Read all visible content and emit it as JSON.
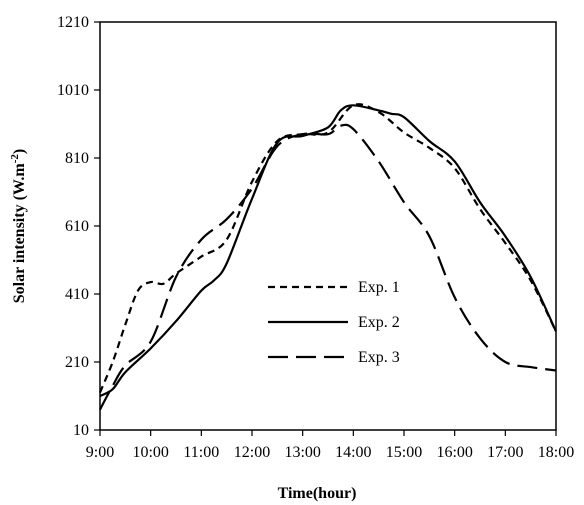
{
  "chart_data": {
    "type": "line",
    "title": "",
    "xlabel": "Time(hour)",
    "ylabel": "Solar intensity (W.m-2)",
    "ylabel_parts": {
      "main": "Solar intensity (W.m",
      "sup": "-2",
      "close": ")"
    },
    "xlim": [
      9,
      18
    ],
    "ylim": [
      10,
      1210
    ],
    "x_ticks": [
      {
        "value": 9,
        "label": "9:00"
      },
      {
        "value": 10,
        "label": "10:00"
      },
      {
        "value": 11,
        "label": "11:00"
      },
      {
        "value": 12,
        "label": "12:00"
      },
      {
        "value": 13,
        "label": "13:00"
      },
      {
        "value": 14,
        "label": "14:00"
      },
      {
        "value": 15,
        "label": "15:00"
      },
      {
        "value": 16,
        "label": "16:00"
      },
      {
        "value": 17,
        "label": "17:00"
      },
      {
        "value": 18,
        "label": "18:00"
      }
    ],
    "y_ticks": [
      {
        "value": 10,
        "label": "10"
      },
      {
        "value": 210,
        "label": "210"
      },
      {
        "value": 410,
        "label": "410"
      },
      {
        "value": 610,
        "label": "610"
      },
      {
        "value": 810,
        "label": "810"
      },
      {
        "value": 1010,
        "label": "1010"
      },
      {
        "value": 1210,
        "label": "1210"
      }
    ],
    "grid": false,
    "legend_position": "center",
    "series": [
      {
        "name": "Exp. 1",
        "dash": "short",
        "points": [
          [
            9.0,
            120
          ],
          [
            9.25,
            210
          ],
          [
            9.5,
            320
          ],
          [
            9.75,
            420
          ],
          [
            10.0,
            445
          ],
          [
            10.25,
            440
          ],
          [
            10.5,
            470
          ],
          [
            11.0,
            520
          ],
          [
            11.5,
            570
          ],
          [
            12.0,
            740
          ],
          [
            12.5,
            860
          ],
          [
            13.0,
            880
          ],
          [
            13.5,
            885
          ],
          [
            14.0,
            965
          ],
          [
            14.5,
            945
          ],
          [
            15.0,
            885
          ],
          [
            15.5,
            840
          ],
          [
            16.0,
            780
          ],
          [
            16.5,
            660
          ],
          [
            17.0,
            560
          ],
          [
            17.5,
            450
          ],
          [
            18.0,
            300
          ]
        ]
      },
      {
        "name": "Exp. 2",
        "dash": "solid",
        "points": [
          [
            9.0,
            110
          ],
          [
            9.25,
            130
          ],
          [
            9.5,
            180
          ],
          [
            10.0,
            250
          ],
          [
            10.5,
            330
          ],
          [
            11.0,
            420
          ],
          [
            11.25,
            450
          ],
          [
            11.5,
            500
          ],
          [
            12.0,
            690
          ],
          [
            12.5,
            855
          ],
          [
            13.0,
            875
          ],
          [
            13.5,
            900
          ],
          [
            13.75,
            950
          ],
          [
            14.0,
            965
          ],
          [
            14.5,
            950
          ],
          [
            14.75,
            940
          ],
          [
            15.0,
            930
          ],
          [
            15.5,
            860
          ],
          [
            16.0,
            800
          ],
          [
            16.5,
            680
          ],
          [
            17.0,
            580
          ],
          [
            17.5,
            460
          ],
          [
            18.0,
            300
          ]
        ]
      },
      {
        "name": "Exp. 3",
        "dash": "long",
        "points": [
          [
            9.0,
            70
          ],
          [
            9.25,
            140
          ],
          [
            9.5,
            200
          ],
          [
            10.0,
            270
          ],
          [
            10.5,
            460
          ],
          [
            11.0,
            570
          ],
          [
            11.5,
            630
          ],
          [
            12.0,
            720
          ],
          [
            12.5,
            845
          ],
          [
            13.0,
            880
          ],
          [
            13.5,
            880
          ],
          [
            13.75,
            905
          ],
          [
            14.0,
            895
          ],
          [
            14.5,
            800
          ],
          [
            15.0,
            680
          ],
          [
            15.5,
            580
          ],
          [
            16.0,
            400
          ],
          [
            16.5,
            280
          ],
          [
            17.0,
            210
          ],
          [
            17.5,
            195
          ],
          [
            18.0,
            185
          ]
        ]
      }
    ]
  }
}
